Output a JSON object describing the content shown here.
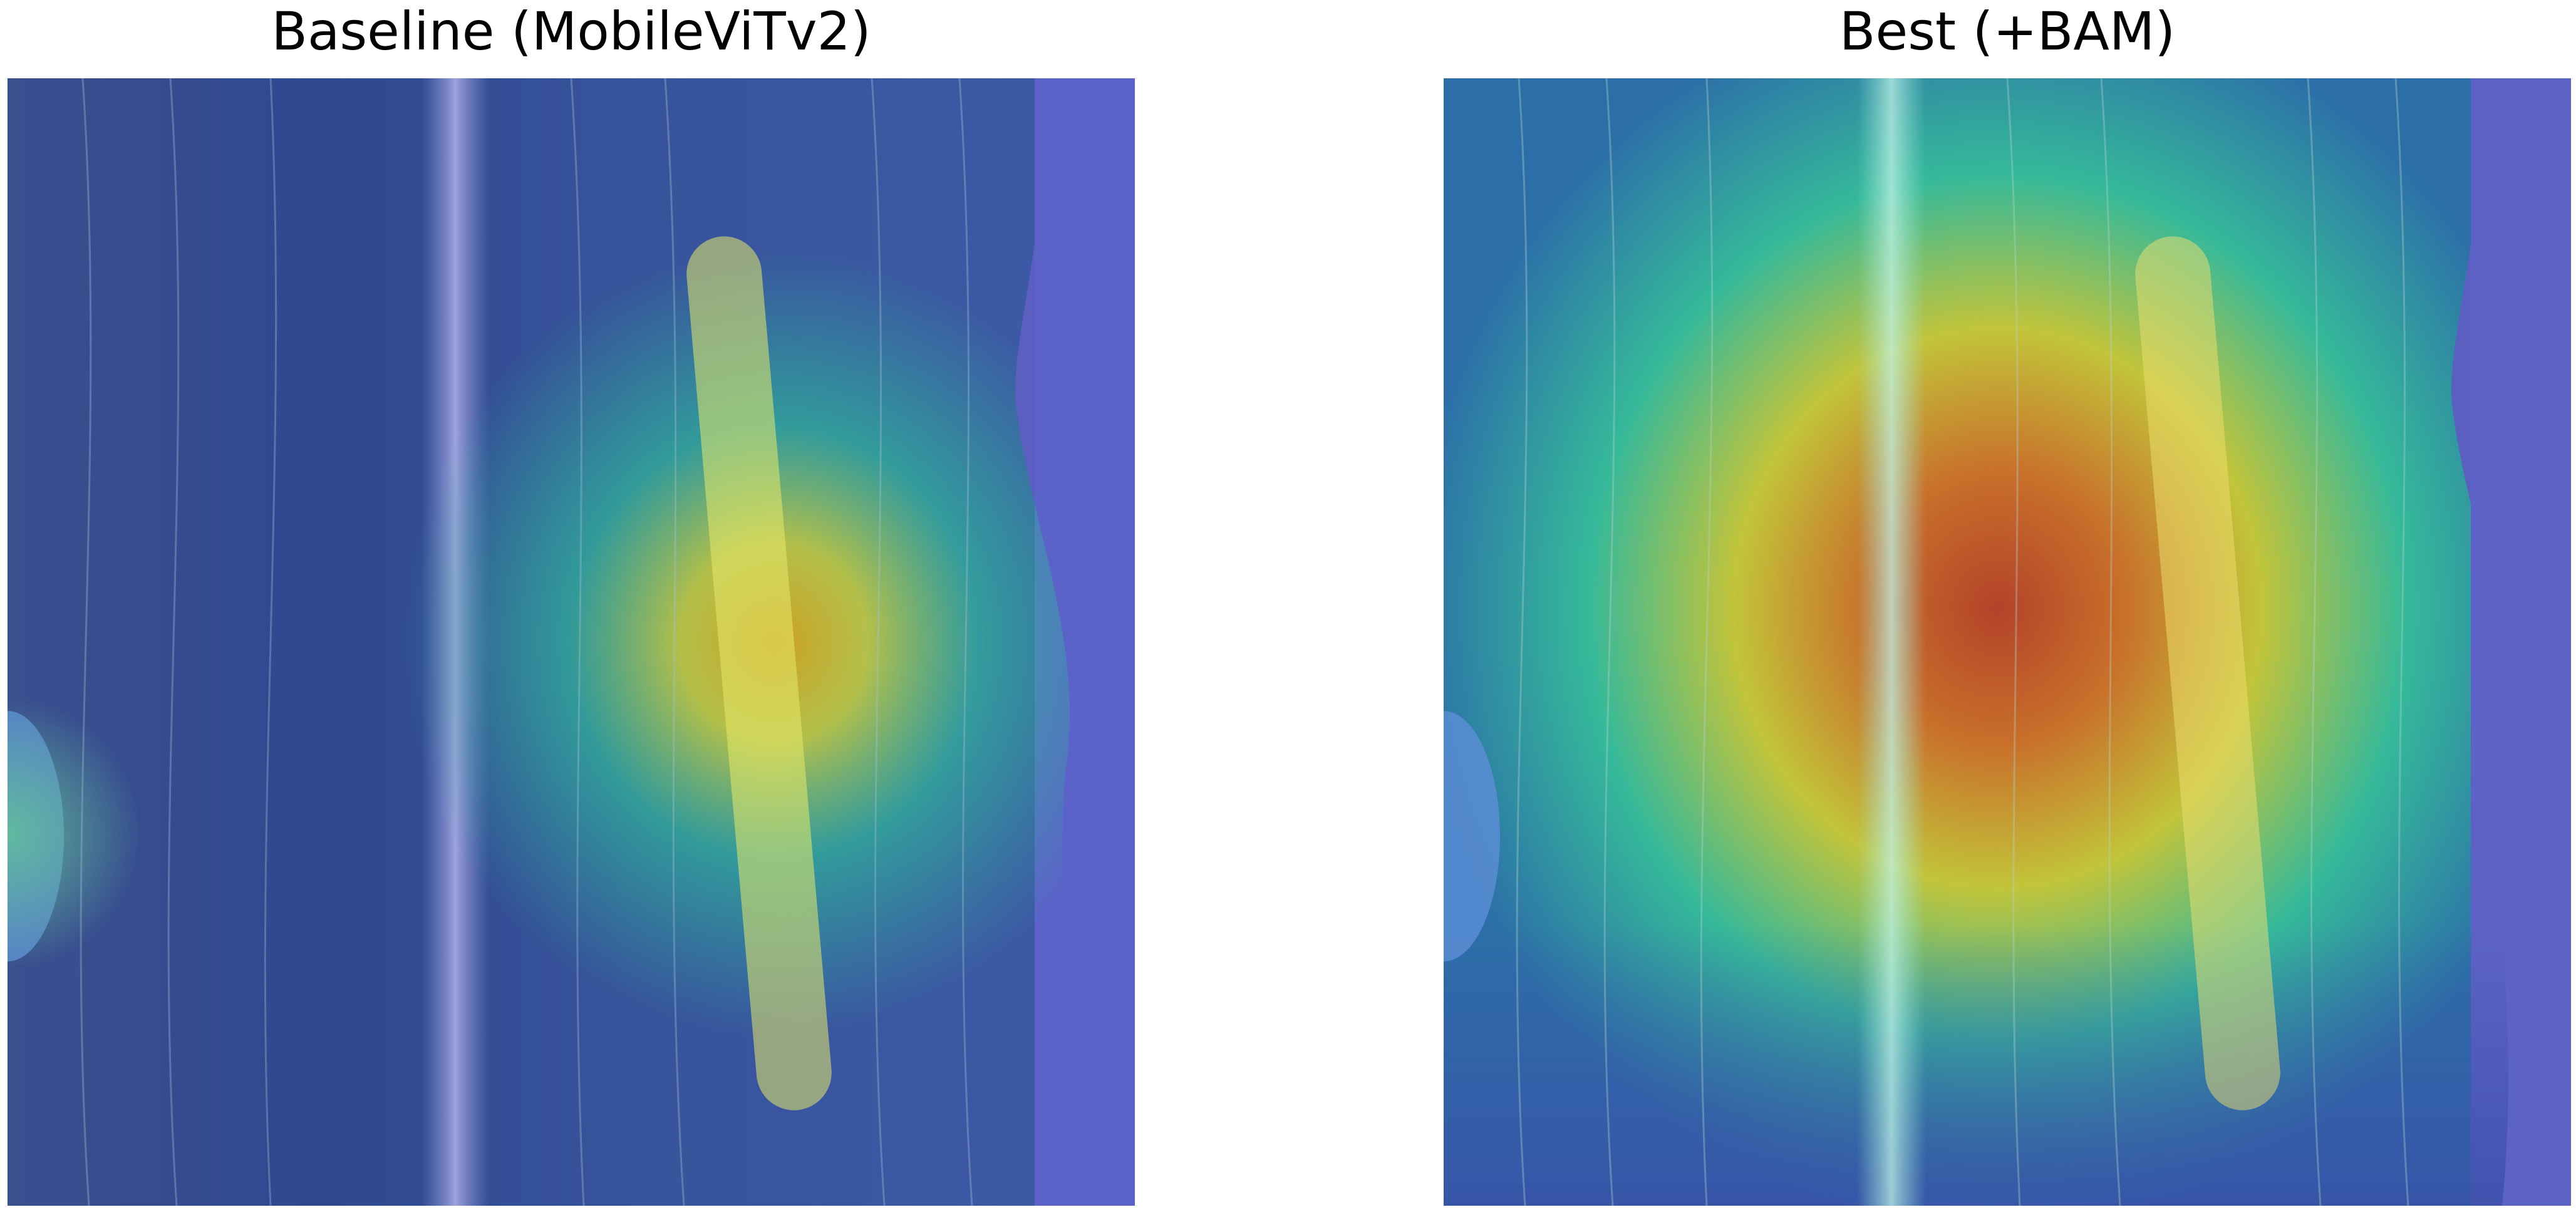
{
  "panels": [
    {
      "title": "Baseline (MobileViTv2)",
      "image": "grad-cam heatmap overlay on corn leaf, focused on right-side lesion band"
    },
    {
      "title": "Best (+BAM)",
      "image": "grad-cam heatmap overlay on corn leaf, broad hot region centered on leaf"
    }
  ],
  "colors": {
    "colormap_low": "#3b3fa8",
    "colormap_mid": "#2fb89a",
    "colormap_high": "#e8e03a",
    "colormap_peak": "#c0502a",
    "background": "#ffffff"
  }
}
